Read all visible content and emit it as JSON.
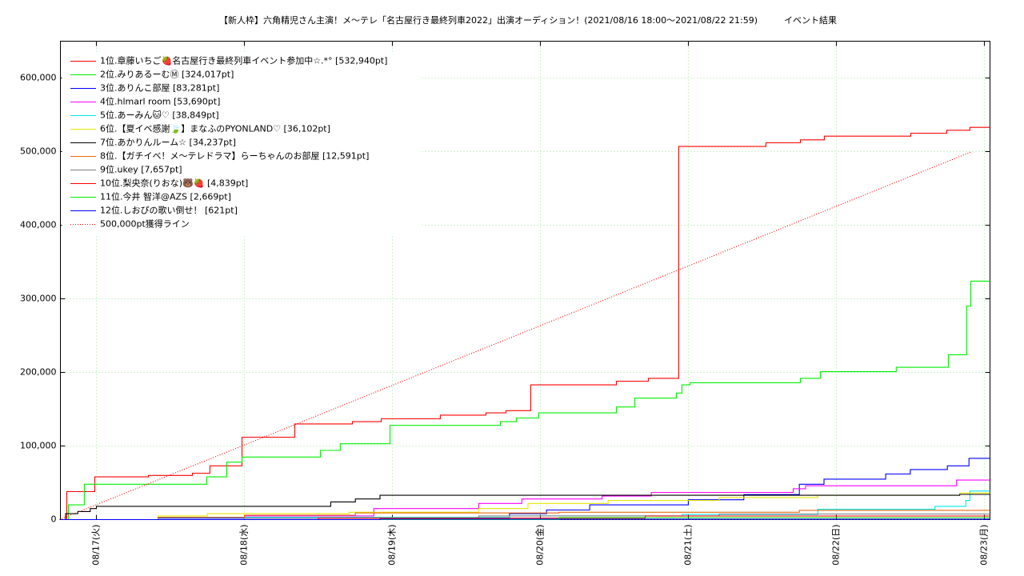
{
  "chart_data": {
    "type": "line",
    "title": "【新人枠】六角精児さん主演！メ〜テレ「名古屋行き最終列車2022」出演オーディション！(2021/08/16 18:00〜2021/08/22 21:59)　　　イベント結果",
    "xlim": [
      "08/16 18:10",
      "08/23 00:55"
    ],
    "xticks": [
      {
        "value": "08/17 00:00",
        "label": "08/17(火)"
      },
      {
        "value": "08/18 00:00",
        "label": "08/18(水)"
      },
      {
        "value": "08/19 00:00",
        "label": "08/19(木)"
      },
      {
        "value": "08/20 00:00",
        "label": "08/20(金)"
      },
      {
        "value": "08/21 00:00",
        "label": "08/21(土)"
      },
      {
        "value": "08/22 00:00",
        "label": "08/22(日)"
      },
      {
        "value": "08/23 00:00",
        "label": "08/23(月)"
      }
    ],
    "ylim": [
      0,
      650000
    ],
    "yticks": [
      0,
      {
        "value": 100000,
        "label": "100,000"
      },
      {
        "value": 200000,
        "label": "200,000"
      },
      {
        "value": 300000,
        "label": "300,000"
      },
      {
        "value": 400000,
        "label": "400,000"
      },
      {
        "value": 500000,
        "label": "500,000"
      },
      {
        "value": 600000,
        "label": "600,000"
      }
    ],
    "grid": true,
    "legend": "upper left",
    "series": [
      {
        "name": "1位.章藤いちご🍓名古屋行き最終列車イベント参加中☆.*° [532,940pt]",
        "color": "#ff0000",
        "steps": true,
        "x": [
          "08/16 18:10",
          "08/16 19:12",
          "08/16 23:45",
          "08/17 08:26",
          "08/17 15:34",
          "08/17 18:25",
          "08/17 23:37",
          "08/18 08:11",
          "08/18 17:31",
          "08/18 22:11",
          "08/19 07:47",
          "08/19 15:10",
          "08/19 18:26",
          "08/19 22:26",
          "08/20 12:20",
          "08/20 17:31",
          "08/20 22:26",
          "08/21 12:35",
          "08/21 18:10",
          "08/21 22:03",
          "08/22 12:04",
          "08/22 17:54",
          "08/22 21:40",
          "08/23 00:55"
        ],
        "values": [
          0,
          38000,
          58000,
          60000,
          63000,
          73000,
          112000,
          130000,
          133000,
          137000,
          142000,
          145000,
          148000,
          183000,
          188000,
          192000,
          507000,
          512000,
          516000,
          521000,
          525000,
          529000,
          532940,
          532940
        ]
      },
      {
        "name": "2位.みりあるーむⓂ [324,017pt]",
        "color": "#00ee00",
        "steps": true,
        "x": [
          "08/16 18:10",
          "08/16 19:28",
          "08/16 22:03",
          "08/17 17:54",
          "08/17 21:09",
          "08/17 23:37",
          "08/18 12:20",
          "08/18 15:34",
          "08/18 23:37",
          "08/19 17:31",
          "08/19 20:07",
          "08/19 23:45",
          "08/20 12:20",
          "08/20 15:19",
          "08/20 22:03",
          "08/20 22:57",
          "08/21 00:16",
          "08/21 18:10",
          "08/21 21:25",
          "08/22 09:43",
          "08/22 18:10",
          "08/22 21:08",
          "08/22 21:48",
          "08/23 00:55"
        ],
        "values": [
          0,
          20000,
          48000,
          58000,
          78000,
          85000,
          94000,
          103000,
          128000,
          133000,
          138000,
          145000,
          153000,
          165000,
          172000,
          183000,
          186000,
          192000,
          201000,
          207000,
          224000,
          290000,
          324017,
          324017
        ]
      },
      {
        "name": "3位.ありんこ部屋 [83,281pt]",
        "color": "#0000ff",
        "steps": true,
        "x": [
          "08/16 18:10",
          "08/17 10:00",
          "08/19 19:00",
          "08/20 01:00",
          "08/20 08:00",
          "08/21 00:00",
          "08/21 09:00",
          "08/21 18:00",
          "08/21 22:00",
          "08/22 08:00",
          "08/22 12:00",
          "08/22 18:00",
          "08/22 21:30",
          "08/23 00:55"
        ],
        "values": [
          0,
          2000,
          8000,
          13000,
          20000,
          27000,
          34000,
          48000,
          55000,
          62000,
          68000,
          73000,
          83281,
          83281
        ]
      },
      {
        "name": "4位.hlmarl room [53,690pt]",
        "color": "#ff00ff",
        "steps": true,
        "x": [
          "08/16 18:10",
          "08/18 00:00",
          "08/18 21:00",
          "08/19 14:00",
          "08/19 21:00",
          "08/20 10:00",
          "08/20 18:00",
          "08/21 17:00",
          "08/21 19:00",
          "08/22 19:30",
          "08/23 00:55"
        ],
        "values": [
          0,
          5000,
          15000,
          22000,
          28000,
          32000,
          37000,
          42000,
          46000,
          53690,
          53690
        ]
      },
      {
        "name": "5位.あーみん🐱♡ [38,849pt]",
        "color": "#00e8e8",
        "steps": true,
        "x": [
          "08/16 18:10",
          "08/17 10:00",
          "08/19 19:00",
          "08/20 23:00",
          "08/21 21:00",
          "08/22 16:00",
          "08/22 21:00",
          "08/22 21:40",
          "08/23 00:55"
        ],
        "values": [
          0,
          3000,
          5000,
          7000,
          14000,
          18000,
          26000,
          38849,
          38849
        ]
      },
      {
        "name": "6位.【夏イベ感謝🍃】まなふのPYONLAND♡ [36,102pt]",
        "color": "#e8e800",
        "steps": true,
        "x": [
          "08/16 18:10",
          "08/17 10:00",
          "08/17 18:00",
          "08/18 17:00",
          "08/19 14:00",
          "08/19 22:00",
          "08/20 11:00",
          "08/21 05:00",
          "08/21 21:00",
          "08/22 20:00",
          "08/23 00:55"
        ],
        "values": [
          0,
          5000,
          8000,
          10000,
          15000,
          22000,
          26000,
          30000,
          33000,
          36102,
          36102
        ]
      },
      {
        "name": "7位.あかりんルーム☆ [34,237pt]",
        "color": "#000000",
        "steps": true,
        "x": [
          "08/16 18:10",
          "08/16 19:00",
          "08/16 21:00",
          "08/16 23:00",
          "08/17 00:00",
          "08/18 14:00",
          "08/18 18:00",
          "08/18 22:00",
          "08/22 20:00",
          "08/23 00:55"
        ],
        "values": [
          0,
          8000,
          11000,
          15000,
          18000,
          24000,
          28000,
          33000,
          34237,
          34237
        ]
      },
      {
        "name": "8位.【ガチイベ！メ〜テレドラマ】らーちゃんのお部屋 [12,591pt]",
        "color": "#e86a10",
        "steps": true,
        "x": [
          "08/16 18:10",
          "08/17 10:00",
          "08/18 00:00",
          "08/18 18:00",
          "08/20 03:00",
          "08/21 18:00",
          "08/23 00:55"
        ],
        "values": [
          0,
          3000,
          6000,
          9000,
          10000,
          12591,
          12591
        ]
      },
      {
        "name": "9位.ukey [7,657pt]",
        "color": "#808080",
        "steps": true,
        "x": [
          "08/16 18:10",
          "08/18 00:00",
          "08/19 14:00",
          "08/21 05:00",
          "08/23 00:55"
        ],
        "values": [
          0,
          2000,
          5000,
          7657,
          7657
        ]
      },
      {
        "name": "10位.梨央奈(りおな)🐻🍓 [4,839pt]",
        "color": "#ff0000",
        "steps": true,
        "x": [
          "08/16 18:10",
          "08/18 12:00",
          "08/20 17:00",
          "08/23 00:55"
        ],
        "values": [
          0,
          2000,
          4839,
          4839
        ]
      },
      {
        "name": "11位.今井 智洋@AZS [2,669pt]",
        "color": "#00ee00",
        "steps": true,
        "x": [
          "08/16 18:10",
          "08/20 03:00",
          "08/23 00:55"
        ],
        "values": [
          0,
          2669,
          2669
        ]
      },
      {
        "name": "12位.しおぴの歌い倒せ！ [621pt]",
        "color": "#0000ff",
        "steps": true,
        "x": [
          "08/16 18:10",
          "08/18 22:00",
          "08/23 00:55"
        ],
        "values": [
          0,
          621,
          621
        ]
      },
      {
        "name": "500,000pt獲得ライン",
        "color": "#ff0000",
        "steps": false,
        "dotted": true,
        "x": [
          "08/16 18:00",
          "08/22 21:59"
        ],
        "values": [
          0,
          500000
        ]
      }
    ]
  }
}
